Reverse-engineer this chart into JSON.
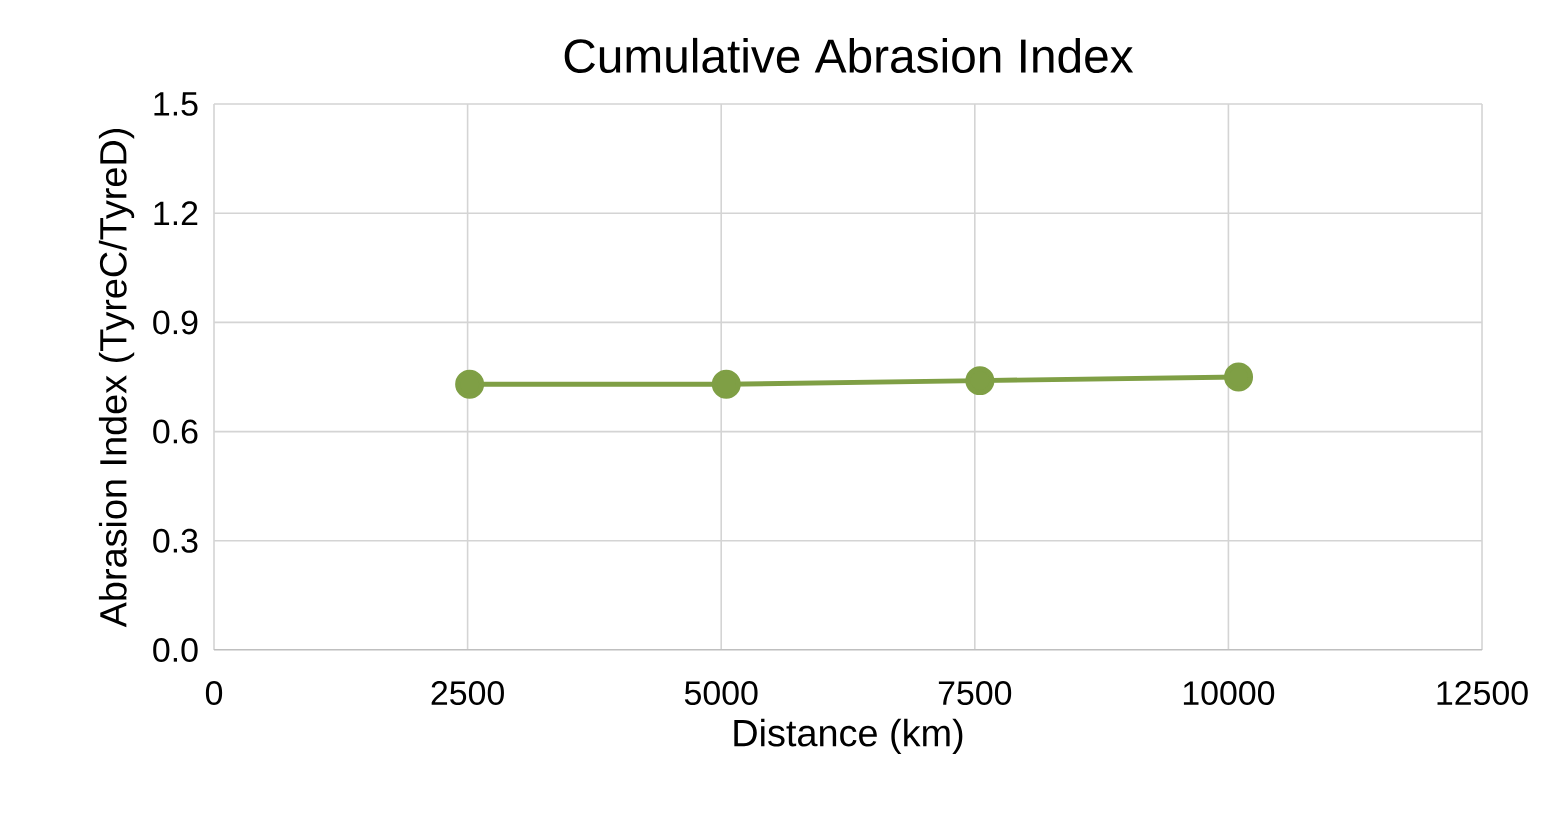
{
  "chart_data": {
    "type": "line",
    "title": "Cumulative Abrasion Index",
    "xlabel": "Distance (km)",
    "ylabel": "Abrasion Index (TyreC/TyreD)",
    "x": [
      2520,
      5050,
      7550,
      10100
    ],
    "series": [
      {
        "color": "#7f9f45",
        "values": [
          0.73,
          0.73,
          0.74,
          0.75
        ]
      }
    ],
    "xlim": [
      0,
      12500
    ],
    "xticks": [
      0,
      2500,
      5000,
      7500,
      10000,
      12500
    ],
    "ylim": [
      0,
      1.5
    ],
    "yticks": [
      {
        "value": 0,
        "label": "0.0"
      },
      0.3,
      0.6,
      0.9,
      1.2,
      1.5
    ],
    "grid": true,
    "marker": "circle",
    "line_style": "solid"
  }
}
